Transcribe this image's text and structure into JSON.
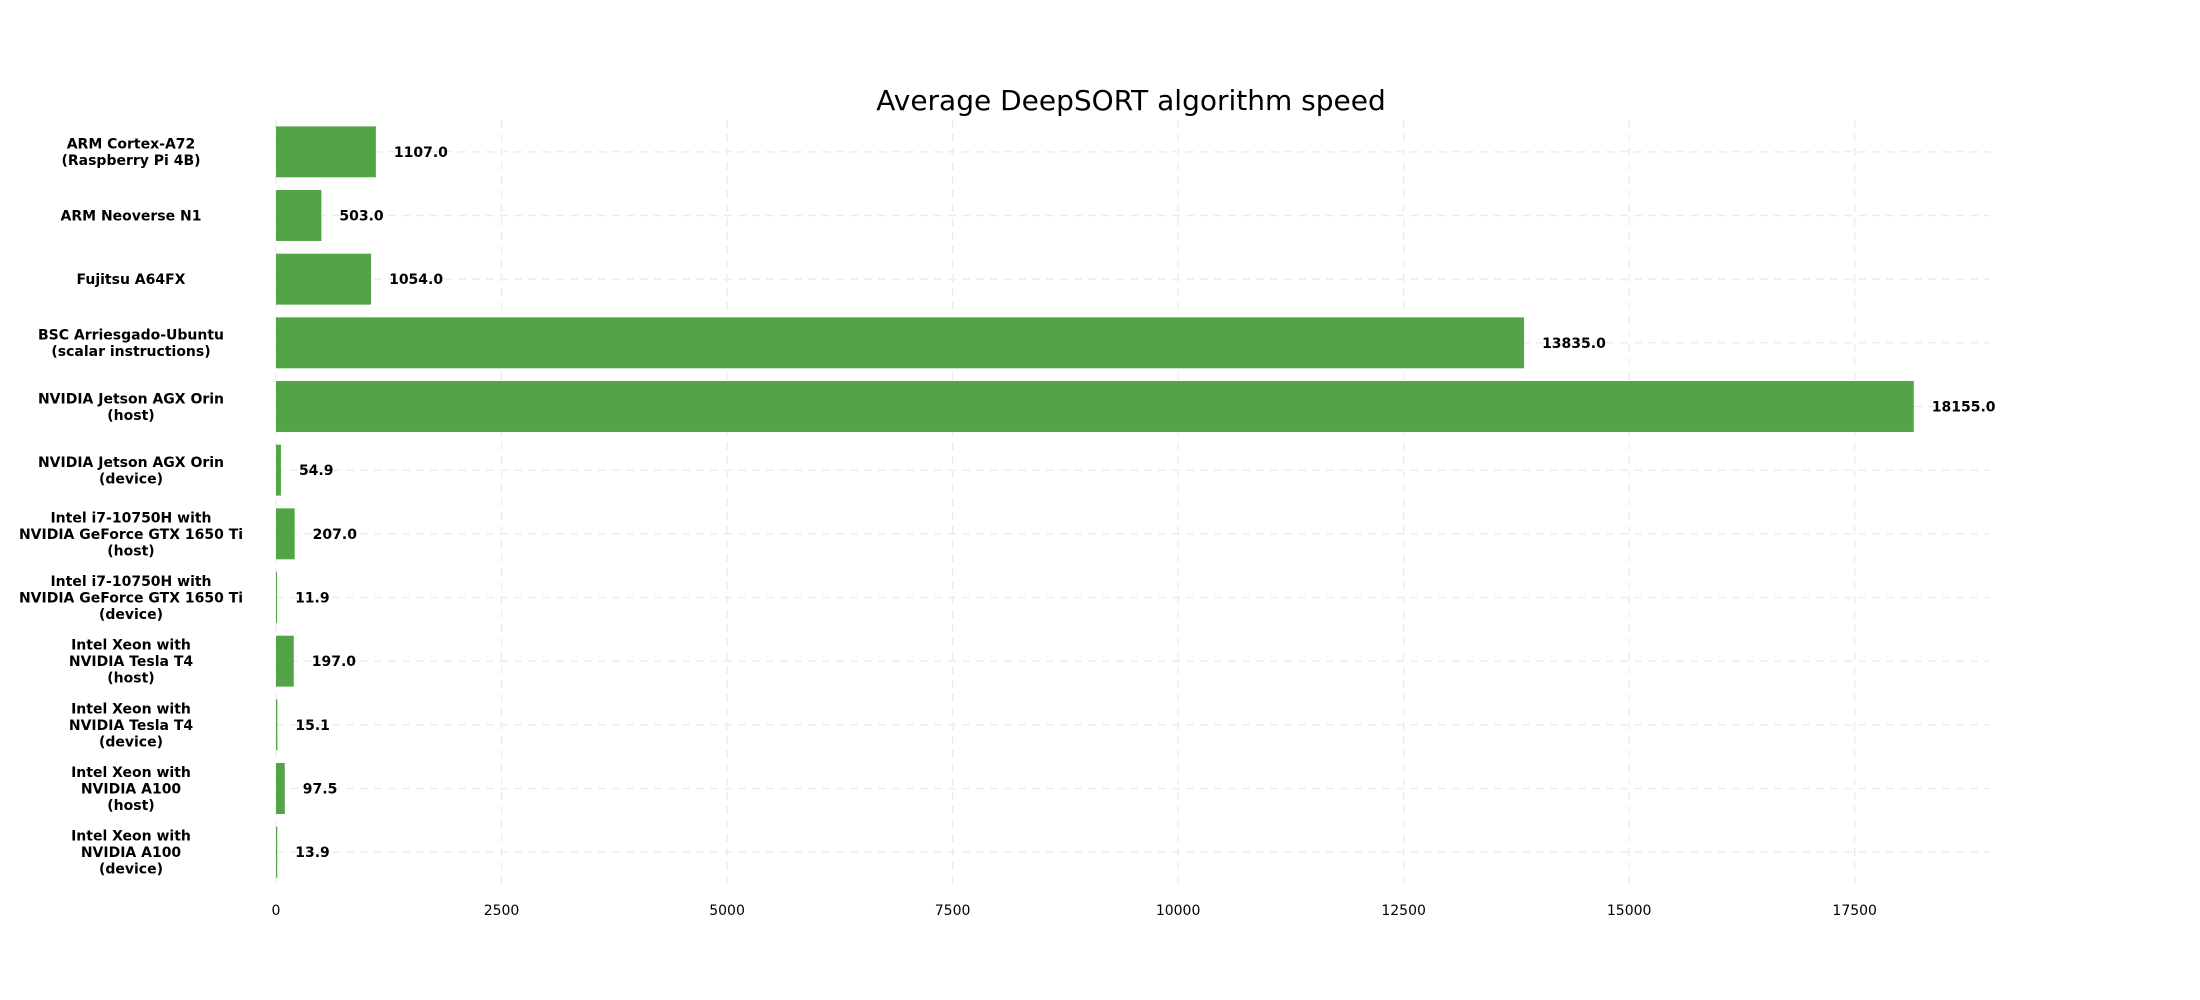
{
  "chart_data": {
    "type": "bar",
    "orientation": "horizontal",
    "title": "Average DeepSORT algorithm speed",
    "xlabel": "",
    "ylabel": "",
    "categories": [
      [
        "ARM Cortex-A72",
        "(Raspberry Pi 4B)"
      ],
      [
        "ARM Neoverse N1"
      ],
      [
        "Fujitsu A64FX"
      ],
      [
        "BSC Arriesgado-Ubuntu",
        "(scalar instructions)"
      ],
      [
        "NVIDIA Jetson AGX Orin",
        "(host)"
      ],
      [
        "NVIDIA Jetson AGX Orin",
        "(device)"
      ],
      [
        "Intel i7-10750H with",
        "NVIDIA GeForce GTX 1650 Ti",
        "(host)"
      ],
      [
        "Intel i7-10750H with",
        "NVIDIA GeForce GTX 1650 Ti",
        "(device)"
      ],
      [
        "Intel Xeon with",
        "NVIDIA Tesla T4",
        "(host)"
      ],
      [
        "Intel Xeon with",
        "NVIDIA Tesla T4",
        "(device)"
      ],
      [
        "Intel Xeon with",
        "NVIDIA A100",
        "(host)"
      ],
      [
        "Intel Xeon with",
        "NVIDIA A100",
        "(device)"
      ]
    ],
    "values": [
      1107.0,
      503.0,
      1054.0,
      13835.0,
      18155.0,
      54.9,
      207.0,
      11.9,
      197.0,
      15.1,
      97.5,
      13.9
    ],
    "value_labels": [
      "1107.0",
      "503.0",
      "1054.0",
      "13835.0",
      "18155.0",
      "54.9",
      "207.0",
      "11.9",
      "197.0",
      "15.1",
      "97.5",
      "13.9"
    ],
    "xticks": [
      0,
      2500,
      5000,
      7500,
      10000,
      12500,
      15000,
      17500
    ],
    "xtick_labels": [
      "0",
      "2500",
      "5000",
      "7500",
      "10000",
      "12500",
      "15000",
      "17500"
    ],
    "xlim": [
      0,
      19000
    ],
    "bar_color": "#52a447",
    "grid": true
  }
}
